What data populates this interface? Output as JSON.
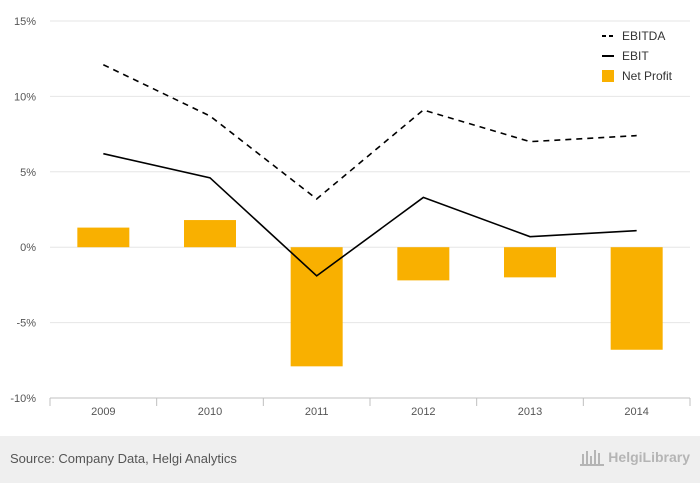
{
  "chart_data": {
    "type": "bar",
    "categories": [
      "2009",
      "2010",
      "2011",
      "2012",
      "2013",
      "2014"
    ],
    "ylim": [
      -10,
      15
    ],
    "yticks": [
      15,
      10,
      5,
      0,
      -5,
      -10
    ],
    "ytick_labels": [
      "15%",
      "10%",
      "5%",
      "0%",
      "-5%",
      "-10%"
    ],
    "grid": true,
    "legend_position": "top-right",
    "series": [
      {
        "name": "EBITDA",
        "kind": "line",
        "style": "dashed",
        "color": "#000000",
        "values": [
          12.1,
          8.7,
          3.2,
          9.1,
          7.0,
          7.4
        ]
      },
      {
        "name": "EBIT",
        "kind": "line",
        "style": "solid",
        "color": "#000000",
        "values": [
          6.2,
          4.6,
          -1.9,
          3.3,
          0.7,
          1.1
        ]
      },
      {
        "name": "Net Profit",
        "kind": "bar",
        "color": "#f9b000",
        "values": [
          1.3,
          1.8,
          -7.9,
          -2.2,
          -2.0,
          -6.8
        ]
      }
    ]
  },
  "footer": {
    "source": "Source: Company Data, Helgi Analytics",
    "brand": "HelgiLibrary"
  }
}
